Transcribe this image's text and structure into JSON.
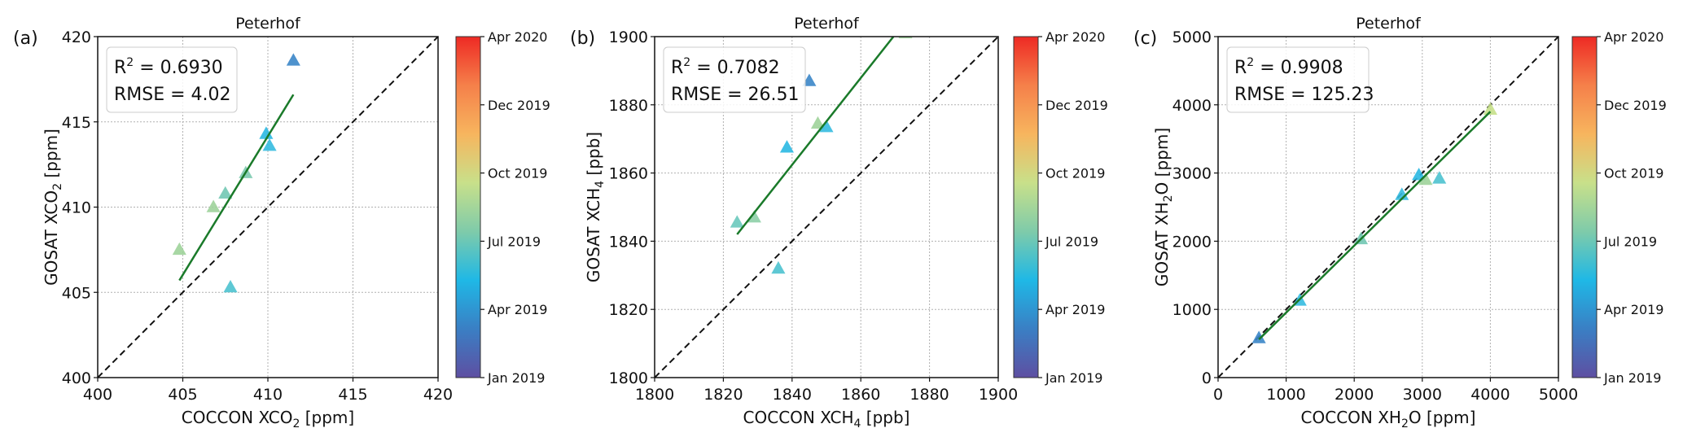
{
  "chart_data": [
    {
      "type": "scatter",
      "panel_label": "(a)",
      "title": "Peterhof",
      "xlabel": {
        "main": "COCCON XCO",
        "sub": "2",
        "unit": " [ppm]"
      },
      "ylabel": {
        "main": "GOSAT XCO",
        "sub": "2",
        "unit": " [ppm]"
      },
      "xlim": [
        400,
        420
      ],
      "ylim": [
        400,
        420
      ],
      "xticks": [
        400,
        405,
        410,
        415,
        420
      ],
      "yticks": [
        400,
        405,
        410,
        415,
        420
      ],
      "grid": true,
      "stats": {
        "r2_label": "R",
        "r2_sup": "2",
        "r2_value": " = 0.6930",
        "rmse": "RMSE = 4.02"
      },
      "one_to_one_line": true,
      "fit_line": {
        "x": [
          404.8,
          411.5
        ],
        "y": [
          405.7,
          416.6
        ],
        "color": "#1a7a2a"
      },
      "points": [
        {
          "x": 404.8,
          "y": 407.5,
          "color": "#9fd39a"
        },
        {
          "x": 406.8,
          "y": 410.0,
          "color": "#9ed39b"
        },
        {
          "x": 407.5,
          "y": 410.8,
          "color": "#72c8b4"
        },
        {
          "x": 408.7,
          "y": 412.0,
          "color": "#7dcab0"
        },
        {
          "x": 409.9,
          "y": 414.3,
          "color": "#2ab8e2"
        },
        {
          "x": 410.1,
          "y": 413.6,
          "color": "#35bbe0"
        },
        {
          "x": 411.5,
          "y": 418.6,
          "color": "#3b86c8"
        },
        {
          "x": 407.8,
          "y": 405.3,
          "color": "#4cc2cf"
        }
      ]
    },
    {
      "type": "scatter",
      "panel_label": "(b)",
      "title": "Peterhof",
      "xlabel": {
        "main": "COCCON XCH",
        "sub": "4",
        "unit": " [ppb]"
      },
      "ylabel": {
        "main": "GOSAT XCH",
        "sub": "4",
        "unit": " [ppb]"
      },
      "xlim": [
        1800,
        1900
      ],
      "ylim": [
        1800,
        1900
      ],
      "xticks": [
        1800,
        1820,
        1840,
        1860,
        1880,
        1900
      ],
      "yticks": [
        1800,
        1820,
        1840,
        1860,
        1880,
        1900
      ],
      "grid": true,
      "stats": {
        "r2_label": "R",
        "r2_sup": "2",
        "r2_value": " = 0.7082",
        "rmse": "RMSE = 26.51"
      },
      "one_to_one_line": true,
      "fit_line": {
        "x": [
          1824,
          1869.5
        ],
        "y": [
          1842,
          1900
        ],
        "color": "#1a7a2a"
      },
      "points": [
        {
          "x": 1824,
          "y": 1845.5,
          "color": "#6ac9bd"
        },
        {
          "x": 1829,
          "y": 1847,
          "color": "#8dcfa7"
        },
        {
          "x": 1836,
          "y": 1832,
          "color": "#4cc2cf"
        },
        {
          "x": 1838.5,
          "y": 1867.5,
          "color": "#2ab8e2"
        },
        {
          "x": 1845,
          "y": 1887,
          "color": "#3b86c8"
        },
        {
          "x": 1847.5,
          "y": 1874.5,
          "color": "#9fd39a"
        },
        {
          "x": 1850,
          "y": 1873.5,
          "color": "#35bbe0"
        },
        {
          "x": 1873,
          "y": 1901,
          "color": "#9ed39b"
        }
      ]
    },
    {
      "type": "scatter",
      "panel_label": "(c)",
      "title": "Peterhof",
      "xlabel": {
        "main": "COCCON XH",
        "sub": "2",
        "unit": "O [ppm]"
      },
      "ylabel": {
        "main": "GOSAT XH",
        "sub": "2",
        "unit": "O [ppm]"
      },
      "xlim": [
        0,
        5000
      ],
      "ylim": [
        0,
        5000
      ],
      "xticks": [
        0,
        1000,
        2000,
        3000,
        4000,
        5000
      ],
      "yticks": [
        0,
        1000,
        2000,
        3000,
        4000,
        5000
      ],
      "grid": true,
      "stats": {
        "r2_label": "R",
        "r2_sup": "2",
        "r2_value": " = 0.9908",
        "rmse": "RMSE = 125.23"
      },
      "one_to_one_line": true,
      "fit_line": {
        "x": [
          600,
          4000
        ],
        "y": [
          560,
          3900
        ],
        "color": "#1a7a2a"
      },
      "points": [
        {
          "x": 600,
          "y": 580,
          "color": "#3b86c8"
        },
        {
          "x": 1200,
          "y": 1130,
          "color": "#35bbe0"
        },
        {
          "x": 2100,
          "y": 2030,
          "color": "#72c8b4"
        },
        {
          "x": 2700,
          "y": 2680,
          "color": "#35bbe0"
        },
        {
          "x": 2950,
          "y": 2970,
          "color": "#2ab8e2"
        },
        {
          "x": 3050,
          "y": 2900,
          "color": "#9fd39a"
        },
        {
          "x": 3250,
          "y": 2920,
          "color": "#4cc2cf"
        },
        {
          "x": 4000,
          "y": 3930,
          "color": "#c6e08a"
        }
      ]
    }
  ],
  "colorbar": {
    "ticks": [
      "Jan 2019",
      "Apr 2019",
      "Jul 2019",
      "Oct 2019",
      "Dec 2019",
      "Apr 2020"
    ],
    "colors": [
      "#5e4fa2",
      "#3a7fc4",
      "#1fb8e6",
      "#7fcbaa",
      "#c8e08a",
      "#f7b55e",
      "#f5804a",
      "#ee2a24"
    ]
  }
}
